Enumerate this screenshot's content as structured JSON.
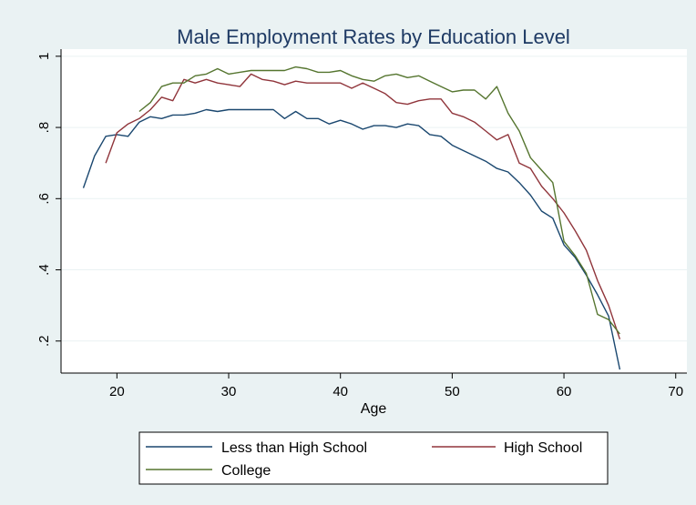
{
  "chart_data": {
    "type": "line",
    "title": "Male Employment Rates by Education Level",
    "xlabel": "Age",
    "ylabel": "",
    "xlim": [
      15,
      71
    ],
    "ylim": [
      0.11,
      1.02
    ],
    "x_ticks": [
      20,
      30,
      40,
      50,
      60,
      70
    ],
    "y_ticks": [
      0.2,
      0.4,
      0.6,
      0.8,
      1.0
    ],
    "x_tick_labels": [
      "20",
      "30",
      "40",
      "50",
      "60",
      "70"
    ],
    "y_tick_labels": [
      ".2",
      ".4",
      ".6",
      ".8",
      "1"
    ],
    "grid": true,
    "legend_position": "bottom",
    "series": [
      {
        "name": "Less than High School",
        "color": "#1a476f",
        "points": [
          [
            17,
            0.63
          ],
          [
            18,
            0.72
          ],
          [
            19,
            0.775
          ],
          [
            20,
            0.78
          ],
          [
            21,
            0.775
          ],
          [
            22,
            0.815
          ],
          [
            23,
            0.83
          ],
          [
            24,
            0.825
          ],
          [
            25,
            0.835
          ],
          [
            26,
            0.835
          ],
          [
            27,
            0.84
          ],
          [
            28,
            0.85
          ],
          [
            29,
            0.845
          ],
          [
            30,
            0.85
          ],
          [
            31,
            0.85
          ],
          [
            32,
            0.85
          ],
          [
            33,
            0.85
          ],
          [
            34,
            0.85
          ],
          [
            35,
            0.825
          ],
          [
            36,
            0.845
          ],
          [
            37,
            0.825
          ],
          [
            38,
            0.825
          ],
          [
            39,
            0.81
          ],
          [
            40,
            0.82
          ],
          [
            41,
            0.81
          ],
          [
            42,
            0.795
          ],
          [
            43,
            0.805
          ],
          [
            44,
            0.805
          ],
          [
            45,
            0.8
          ],
          [
            46,
            0.81
          ],
          [
            47,
            0.805
          ],
          [
            48,
            0.78
          ],
          [
            49,
            0.775
          ],
          [
            50,
            0.75
          ],
          [
            51,
            0.735
          ],
          [
            52,
            0.72
          ],
          [
            53,
            0.705
          ],
          [
            54,
            0.685
          ],
          [
            55,
            0.675
          ],
          [
            56,
            0.645
          ],
          [
            57,
            0.61
          ],
          [
            58,
            0.565
          ],
          [
            59,
            0.545
          ],
          [
            60,
            0.47
          ],
          [
            61,
            0.435
          ],
          [
            62,
            0.385
          ],
          [
            63,
            0.33
          ],
          [
            64,
            0.27
          ],
          [
            65,
            0.12
          ]
        ]
      },
      {
        "name": "High School",
        "color": "#90353b",
        "points": [
          [
            19,
            0.7
          ],
          [
            20,
            0.785
          ],
          [
            21,
            0.81
          ],
          [
            22,
            0.825
          ],
          [
            23,
            0.85
          ],
          [
            24,
            0.885
          ],
          [
            25,
            0.875
          ],
          [
            26,
            0.935
          ],
          [
            27,
            0.925
          ],
          [
            28,
            0.935
          ],
          [
            29,
            0.925
          ],
          [
            30,
            0.92
          ],
          [
            31,
            0.915
          ],
          [
            32,
            0.95
          ],
          [
            33,
            0.935
          ],
          [
            34,
            0.93
          ],
          [
            35,
            0.92
          ],
          [
            36,
            0.93
          ],
          [
            37,
            0.925
          ],
          [
            38,
            0.925
          ],
          [
            39,
            0.925
          ],
          [
            40,
            0.925
          ],
          [
            41,
            0.91
          ],
          [
            42,
            0.925
          ],
          [
            43,
            0.91
          ],
          [
            44,
            0.895
          ],
          [
            45,
            0.87
          ],
          [
            46,
            0.865
          ],
          [
            47,
            0.875
          ],
          [
            48,
            0.88
          ],
          [
            49,
            0.88
          ],
          [
            50,
            0.84
          ],
          [
            51,
            0.83
          ],
          [
            52,
            0.815
          ],
          [
            53,
            0.79
          ],
          [
            54,
            0.765
          ],
          [
            55,
            0.78
          ],
          [
            56,
            0.7
          ],
          [
            57,
            0.685
          ],
          [
            58,
            0.635
          ],
          [
            59,
            0.6
          ],
          [
            60,
            0.56
          ],
          [
            61,
            0.51
          ],
          [
            62,
            0.455
          ],
          [
            63,
            0.37
          ],
          [
            64,
            0.3
          ],
          [
            65,
            0.205
          ]
        ]
      },
      {
        "name": "College",
        "color": "#55752f",
        "points": [
          [
            22,
            0.845
          ],
          [
            23,
            0.87
          ],
          [
            24,
            0.915
          ],
          [
            25,
            0.925
          ],
          [
            26,
            0.925
          ],
          [
            27,
            0.945
          ],
          [
            28,
            0.95
          ],
          [
            29,
            0.965
          ],
          [
            30,
            0.95
          ],
          [
            31,
            0.955
          ],
          [
            32,
            0.96
          ],
          [
            33,
            0.96
          ],
          [
            34,
            0.96
          ],
          [
            35,
            0.96
          ],
          [
            36,
            0.97
          ],
          [
            37,
            0.965
          ],
          [
            38,
            0.955
          ],
          [
            39,
            0.955
          ],
          [
            40,
            0.96
          ],
          [
            41,
            0.945
          ],
          [
            42,
            0.935
          ],
          [
            43,
            0.93
          ],
          [
            44,
            0.945
          ],
          [
            45,
            0.95
          ],
          [
            46,
            0.94
          ],
          [
            47,
            0.945
          ],
          [
            48,
            0.93
          ],
          [
            49,
            0.915
          ],
          [
            50,
            0.9
          ],
          [
            51,
            0.905
          ],
          [
            52,
            0.905
          ],
          [
            53,
            0.88
          ],
          [
            54,
            0.915
          ],
          [
            55,
            0.84
          ],
          [
            56,
            0.79
          ],
          [
            57,
            0.715
          ],
          [
            58,
            0.68
          ],
          [
            59,
            0.645
          ],
          [
            60,
            0.48
          ],
          [
            61,
            0.44
          ],
          [
            62,
            0.39
          ],
          [
            63,
            0.275
          ],
          [
            64,
            0.26
          ],
          [
            65,
            0.22
          ]
        ]
      }
    ]
  }
}
